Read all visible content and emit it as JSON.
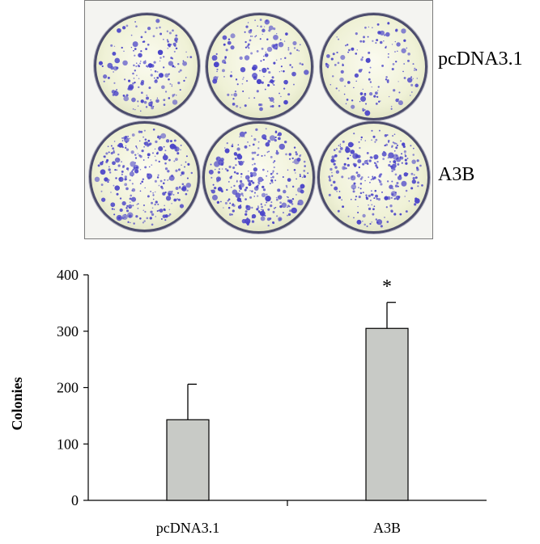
{
  "plates": {
    "rows": [
      {
        "label": "pcDNA3.1",
        "dish_count": 3
      },
      {
        "label": "A3B",
        "dish_count": 3
      }
    ],
    "colony_color": "#4a44c8"
  },
  "chart_data": {
    "type": "bar",
    "categories": [
      "pcDNA3.1",
      "A3B"
    ],
    "values": [
      143,
      305
    ],
    "error_plus": [
      63,
      46
    ],
    "annotations": [
      "",
      "*"
    ],
    "title": "",
    "xlabel": "",
    "ylabel": "Colonies",
    "ylim": [
      0,
      400
    ],
    "yticks": [
      0,
      100,
      200,
      300,
      400
    ],
    "bar_color": "#c8cac6",
    "grid": false
  }
}
